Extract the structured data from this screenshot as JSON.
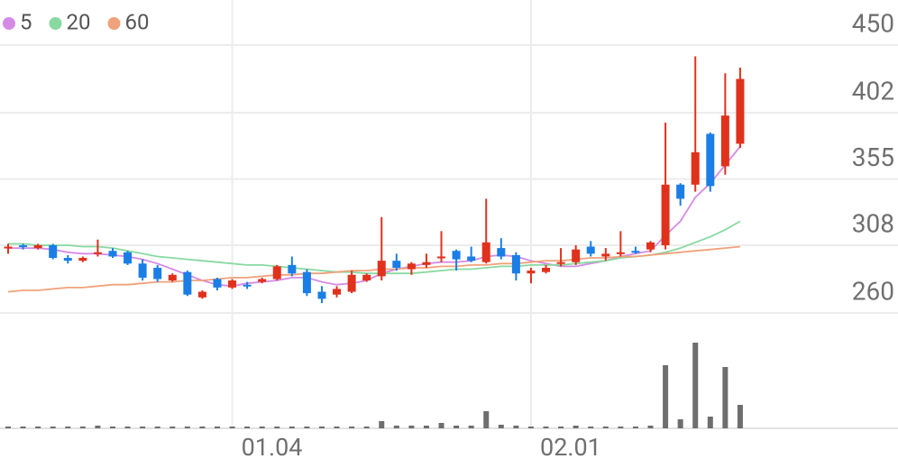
{
  "chart_data": {
    "type": "candlestick",
    "categories": [
      null,
      null,
      null,
      null,
      null,
      null,
      null,
      null,
      null,
      null,
      null,
      null,
      null,
      null,
      null,
      "01.04",
      null,
      null,
      null,
      null,
      null,
      null,
      null,
      null,
      null,
      null,
      null,
      null,
      null,
      null,
      null,
      null,
      null,
      null,
      null,
      "02.01",
      null,
      null,
      null,
      null,
      null,
      null,
      null,
      null,
      null,
      null,
      null,
      null,
      null,
      null
    ],
    "open": [
      306,
      308,
      306,
      308,
      299,
      297,
      302,
      304,
      303,
      295,
      292,
      283,
      289,
      271,
      284,
      278,
      280,
      282,
      284,
      294,
      289,
      275,
      273,
      275,
      283,
      286,
      297,
      291,
      294,
      299,
      304,
      300,
      296,
      306,
      301,
      288,
      289,
      295,
      296,
      307,
      300,
      302,
      304,
      305,
      308,
      351,
      351,
      387,
      364,
      380
    ],
    "high": [
      309,
      309,
      309,
      309,
      301,
      300,
      312,
      306,
      304,
      298,
      294,
      288,
      290,
      276,
      285,
      284,
      282,
      285,
      294,
      300,
      291,
      279,
      279,
      290,
      288,
      328,
      302,
      296,
      302,
      318,
      305,
      307,
      341,
      313,
      303,
      292,
      294,
      306,
      308,
      311,
      306,
      318,
      307,
      311,
      395,
      352,
      442,
      388,
      430,
      434
    ],
    "low": [
      302,
      305,
      305,
      298,
      295,
      296,
      300,
      299,
      294,
      283,
      282,
      282,
      272,
      270,
      276,
      277,
      277,
      281,
      283,
      286,
      272,
      267,
      271,
      274,
      282,
      283,
      290,
      287,
      292,
      296,
      290,
      296,
      295,
      298,
      283,
      281,
      288,
      293,
      294,
      300,
      297,
      300,
      302,
      303,
      305,
      336,
      346,
      346,
      358,
      377
    ],
    "close": [
      307,
      307,
      308,
      299,
      297,
      299,
      303,
      300,
      295,
      285,
      284,
      287,
      273,
      275,
      278,
      283,
      279,
      284,
      293,
      288,
      274,
      270,
      277,
      287,
      287,
      297,
      292,
      295,
      296,
      300,
      298,
      297,
      310,
      300,
      288,
      290,
      292,
      296,
      305,
      302,
      302,
      303,
      303,
      310,
      351,
      341,
      374,
      350,
      400,
      426
    ],
    "up_color": "#e0311c",
    "down_color": "#1a7ee6",
    "volume": [
      2,
      2,
      2,
      2,
      2,
      2,
      3,
      2,
      2,
      2,
      2,
      2,
      2,
      2,
      2,
      2,
      2,
      2,
      2,
      2,
      2,
      2,
      2,
      2,
      2,
      8,
      3,
      3,
      3,
      6,
      3,
      3,
      19,
      4,
      3,
      2,
      2,
      2,
      3,
      2,
      2,
      2,
      2,
      3,
      70,
      10,
      95,
      13,
      68,
      26
    ],
    "volume_color": "#6e6e6e",
    "series": [
      {
        "name": "5",
        "color": "#d58be6",
        "values": [
          306,
          306,
          306,
          305,
          303,
          302,
          302,
          301,
          300,
          298,
          295,
          291,
          287,
          283,
          280,
          279,
          281,
          282,
          283,
          285,
          285,
          282,
          280,
          281,
          283,
          288,
          291,
          293,
          295,
          296,
          296,
          297,
          300,
          301,
          300,
          297,
          295,
          293,
          293,
          295,
          297,
          300,
          302,
          304,
          315,
          325,
          342,
          352,
          365,
          378
        ]
      },
      {
        "name": "20",
        "color": "#88d9a0",
        "values": [
          309,
          309,
          308,
          308,
          308,
          307,
          307,
          306,
          304,
          302,
          300,
          299,
          298,
          297,
          296,
          295,
          294,
          294,
          293,
          292,
          291,
          290,
          289,
          289,
          288,
          288,
          288,
          288,
          289,
          290,
          291,
          291,
          292,
          293,
          293,
          294,
          294,
          294,
          295,
          296,
          297,
          299,
          300,
          301,
          303,
          306,
          310,
          314,
          319,
          325
        ]
      },
      {
        "name": "60",
        "color": "#f0a27a",
        "values": [
          275,
          276,
          276,
          277,
          278,
          278,
          279,
          280,
          280,
          281,
          282,
          282,
          283,
          283,
          284,
          285,
          285,
          286,
          287,
          287,
          288,
          288,
          289,
          290,
          290,
          291,
          291,
          292,
          292,
          293,
          293,
          294,
          294,
          295,
          295,
          296,
          297,
          297,
          298,
          299,
          299,
          300,
          300,
          301,
          302,
          303,
          304,
          305,
          306,
          307
        ]
      }
    ],
    "ylim": [
      260,
      450
    ],
    "yticks": [
      260,
      308,
      355,
      402,
      450
    ],
    "grid": true
  }
}
